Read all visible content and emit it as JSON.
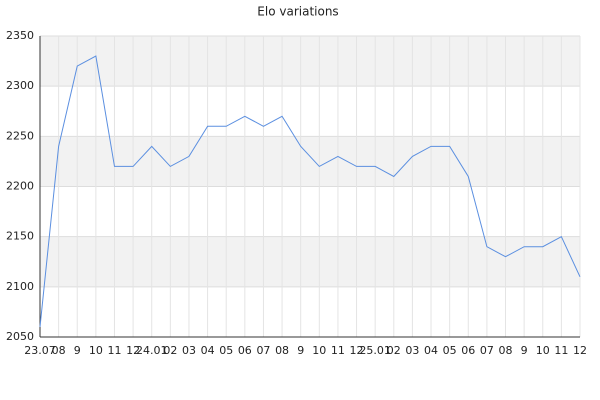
{
  "chart_data": {
    "type": "line",
    "title": "Elo variations",
    "categories": [
      "23.07",
      "08",
      "9",
      "10",
      "11",
      "12",
      "24.01",
      "02",
      "03",
      "04",
      "05",
      "06",
      "07",
      "08",
      "9",
      "10",
      "11",
      "12",
      "25.01",
      "02",
      "03",
      "04",
      "05",
      "06",
      "07",
      "08",
      "9",
      "10",
      "11",
      "12"
    ],
    "series": [
      {
        "name": "Elo",
        "color": "#5b8fe0",
        "values": [
          2060,
          2240,
          2320,
          2330,
          2220,
          2220,
          2240,
          2220,
          2230,
          2260,
          2260,
          2270,
          2260,
          2270,
          2240,
          2220,
          2230,
          2220,
          2220,
          2210,
          2230,
          2240,
          2240,
          2210,
          2140,
          2130,
          2140,
          2140,
          2150,
          2110
        ]
      }
    ],
    "ylim": [
      2050,
      2350
    ],
    "yticks": [
      2050,
      2100,
      2150,
      2200,
      2250,
      2300,
      2350
    ],
    "grid": true,
    "band_color": "#f2f2f2",
    "legend": false
  }
}
